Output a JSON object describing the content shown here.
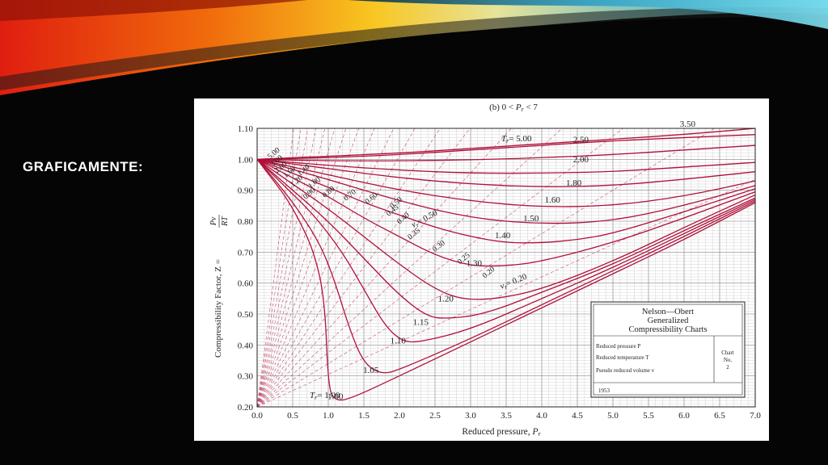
{
  "slide": {
    "number": "",
    "heading": "GRAFICAMENTE:"
  },
  "colors": {
    "background": "#050505",
    "curve": "#b0103a",
    "dashed": "#c64a6a",
    "grid": "#c8c8c8",
    "panel": "#ffffff"
  },
  "chart_data": {
    "type": "line",
    "title_prefix": "(b) 0 < ",
    "title_var": "P",
    "title_sub": "r",
    "title_suffix": " < 7",
    "xlabel": "Reduced pressure, ",
    "xlabel_var": "P",
    "xlabel_sub": "r",
    "ylabel": "Compressibility Factor, Z = ",
    "ylabel_frac_num": "Pv",
    "ylabel_frac_den": "RT",
    "xlim": [
      0,
      7
    ],
    "ylim": [
      0.2,
      1.1
    ],
    "grid": true,
    "x_ticks": [
      "0.0",
      "0.5",
      "1.0",
      "1.5",
      "2.0",
      "2.5",
      "3.0",
      "3.5",
      "4.0",
      "4.5",
      "5.0",
      "5.5",
      "6.0",
      "6.5",
      "7.0"
    ],
    "y_ticks": [
      "0.20",
      "0.30",
      "0.40",
      "0.50",
      "0.60",
      "0.70",
      "0.80",
      "0.90",
      "1.00",
      "1.10"
    ],
    "tr_label_prefix": "T",
    "tr_label_sub": "r",
    "vr_label_prefix": "v",
    "vr_label_sub": "r",
    "isotherms": [
      {
        "tr": "1.00",
        "label": "1.00",
        "points": [
          [
            0,
            1.0
          ],
          [
            0.2,
            0.94
          ],
          [
            0.4,
            0.88
          ],
          [
            0.6,
            0.8
          ],
          [
            0.8,
            0.7
          ],
          [
            0.95,
            0.55
          ],
          [
            1.0,
            0.26
          ],
          [
            1.1,
            0.22
          ],
          [
            1.3,
            0.225
          ],
          [
            2,
            0.3
          ],
          [
            3,
            0.41
          ],
          [
            4,
            0.52
          ],
          [
            5,
            0.63
          ],
          [
            6,
            0.74
          ],
          [
            7,
            0.86
          ]
        ]
      },
      {
        "tr": "1.05",
        "label": "1.05",
        "points": [
          [
            0,
            1.0
          ],
          [
            0.3,
            0.92
          ],
          [
            0.6,
            0.83
          ],
          [
            0.9,
            0.72
          ],
          [
            1.1,
            0.6
          ],
          [
            1.3,
            0.45
          ],
          [
            1.5,
            0.34
          ],
          [
            1.75,
            0.305
          ],
          [
            2,
            0.32
          ],
          [
            3,
            0.42
          ],
          [
            4,
            0.53
          ],
          [
            5,
            0.64
          ],
          [
            6,
            0.75
          ],
          [
            7,
            0.865
          ]
        ]
      },
      {
        "tr": "1.10",
        "label": "1.10",
        "points": [
          [
            0,
            1.0
          ],
          [
            0.4,
            0.91
          ],
          [
            0.8,
            0.82
          ],
          [
            1.2,
            0.7
          ],
          [
            1.5,
            0.58
          ],
          [
            1.8,
            0.46
          ],
          [
            2.05,
            0.41
          ],
          [
            2.3,
            0.41
          ],
          [
            3,
            0.45
          ],
          [
            4,
            0.55
          ],
          [
            5,
            0.65
          ],
          [
            6,
            0.76
          ],
          [
            7,
            0.87
          ]
        ]
      },
      {
        "tr": "1.15",
        "label": "1.15",
        "points": [
          [
            0,
            1.0
          ],
          [
            0.5,
            0.9
          ],
          [
            1,
            0.8
          ],
          [
            1.5,
            0.68
          ],
          [
            2,
            0.56
          ],
          [
            2.4,
            0.49
          ],
          [
            2.7,
            0.485
          ],
          [
            3.2,
            0.5
          ],
          [
            4,
            0.57
          ],
          [
            5,
            0.66
          ],
          [
            6,
            0.77
          ],
          [
            7,
            0.875
          ]
        ]
      },
      {
        "tr": "1.20",
        "label": "1.20",
        "points": [
          [
            0,
            1.0
          ],
          [
            0.5,
            0.92
          ],
          [
            1,
            0.84
          ],
          [
            1.5,
            0.75
          ],
          [
            2,
            0.66
          ],
          [
            2.5,
            0.58
          ],
          [
            2.9,
            0.545
          ],
          [
            3.4,
            0.55
          ],
          [
            4,
            0.58
          ],
          [
            5,
            0.67
          ],
          [
            6,
            0.78
          ],
          [
            7,
            0.885
          ]
        ]
      },
      {
        "tr": "1.30",
        "label": "1.30",
        "points": [
          [
            0,
            1.0
          ],
          [
            0.5,
            0.94
          ],
          [
            1,
            0.88
          ],
          [
            1.5,
            0.81
          ],
          [
            2,
            0.75
          ],
          [
            2.5,
            0.69
          ],
          [
            3,
            0.655
          ],
          [
            3.5,
            0.655
          ],
          [
            4,
            0.67
          ],
          [
            5,
            0.73
          ],
          [
            6,
            0.81
          ],
          [
            7,
            0.895
          ]
        ]
      },
      {
        "tr": "1.40",
        "label": "1.40",
        "points": [
          [
            0,
            1.0
          ],
          [
            0.5,
            0.955
          ],
          [
            1,
            0.91
          ],
          [
            1.5,
            0.86
          ],
          [
            2,
            0.82
          ],
          [
            2.5,
            0.78
          ],
          [
            3,
            0.75
          ],
          [
            3.5,
            0.73
          ],
          [
            4,
            0.73
          ],
          [
            4.5,
            0.74
          ],
          [
            5,
            0.76
          ],
          [
            6,
            0.83
          ],
          [
            7,
            0.905
          ]
        ]
      },
      {
        "tr": "1.50",
        "label": "1.50",
        "points": [
          [
            0,
            1.0
          ],
          [
            1,
            0.935
          ],
          [
            2,
            0.865
          ],
          [
            3,
            0.81
          ],
          [
            4,
            0.79
          ],
          [
            5,
            0.8
          ],
          [
            6,
            0.85
          ],
          [
            7,
            0.915
          ]
        ]
      },
      {
        "tr": "1.60",
        "label": "1.60",
        "points": [
          [
            0,
            1.0
          ],
          [
            1,
            0.95
          ],
          [
            2,
            0.9
          ],
          [
            3,
            0.865
          ],
          [
            4,
            0.845
          ],
          [
            5,
            0.85
          ],
          [
            6,
            0.88
          ],
          [
            7,
            0.93
          ]
        ]
      },
      {
        "tr": "1.80",
        "label": "1.80",
        "points": [
          [
            0,
            1.0
          ],
          [
            1,
            0.97
          ],
          [
            2,
            0.94
          ],
          [
            3,
            0.92
          ],
          [
            4,
            0.91
          ],
          [
            5,
            0.915
          ],
          [
            6,
            0.935
          ],
          [
            7,
            0.96
          ]
        ]
      },
      {
        "tr": "2.00",
        "label": "2.00",
        "points": [
          [
            0,
            1.0
          ],
          [
            1,
            0.98
          ],
          [
            2,
            0.965
          ],
          [
            3,
            0.955
          ],
          [
            4,
            0.955
          ],
          [
            5,
            0.96
          ],
          [
            6,
            0.975
          ],
          [
            7,
            0.99
          ]
        ]
      },
      {
        "tr": "2.50",
        "label": "2.50",
        "points": [
          [
            0,
            1.0
          ],
          [
            1,
            0.995
          ],
          [
            2,
            0.995
          ],
          [
            3,
            0.998
          ],
          [
            4,
            1.005
          ],
          [
            5,
            1.015
          ],
          [
            6,
            1.03
          ],
          [
            7,
            1.045
          ]
        ]
      },
      {
        "tr": "5.00",
        "label": "5.00",
        "points": [
          [
            0,
            1.0
          ],
          [
            1,
            1.005
          ],
          [
            2,
            1.015
          ],
          [
            3,
            1.03
          ],
          [
            4,
            1.045
          ],
          [
            5,
            1.06
          ],
          [
            6,
            1.07
          ],
          [
            7,
            1.08
          ]
        ]
      },
      {
        "tr": "3.50",
        "label": "3.50",
        "points": [
          [
            0,
            1.0
          ],
          [
            1,
            1.01
          ],
          [
            2,
            1.02
          ],
          [
            3,
            1.035
          ],
          [
            4,
            1.05
          ],
          [
            5,
            1.065
          ],
          [
            6,
            1.08
          ],
          [
            7,
            1.1
          ]
        ]
      }
    ],
    "tr_labels_on_curves": [
      {
        "text": "5.00",
        "x": 0.18,
        "y": 1.0
      },
      {
        "text": "3.00",
        "x": 0.22,
        "y": 0.975
      },
      {
        "text": "2.00",
        "x": 0.28,
        "y": 0.955
      },
      {
        "text": "1.60",
        "x": 0.4,
        "y": 0.94
      },
      {
        "text": "1.40",
        "x": 0.6,
        "y": 0.945
      },
      {
        "text": "1.20",
        "x": 0.5,
        "y": 0.91
      },
      {
        "text": "1.00",
        "x": 0.75,
        "y": 0.905
      },
      {
        "text": "0.90",
        "x": 0.68,
        "y": 0.87
      },
      {
        "text": "0.80",
        "x": 0.95,
        "y": 0.875
      },
      {
        "text": "0.70",
        "x": 1.25,
        "y": 0.865
      },
      {
        "text": "0.60",
        "x": 1.55,
        "y": 0.855
      },
      {
        "text": "0.50",
        "x": 1.9,
        "y": 0.84
      },
      {
        "text": "0.45",
        "x": 1.85,
        "y": 0.815
      },
      {
        "text": "0.40",
        "x": 2.0,
        "y": 0.79
      },
      {
        "text": "0.35",
        "x": 2.15,
        "y": 0.74
      },
      {
        "text": "0.30",
        "x": 2.5,
        "y": 0.7
      },
      {
        "text": "0.25",
        "x": 2.85,
        "y": 0.66
      },
      {
        "text": "0.20",
        "x": 3.2,
        "y": 0.615
      }
    ],
    "isotherm_labels": [
      {
        "text": "3.50",
        "x": 6.05,
        "y": 1.105
      },
      {
        "text": "2.50",
        "x": 4.55,
        "y": 1.055
      },
      {
        "text": "2.00",
        "x": 4.55,
        "y": 0.99
      },
      {
        "text": "1.80",
        "x": 4.45,
        "y": 0.915
      },
      {
        "text": "1.60",
        "x": 4.15,
        "y": 0.86
      },
      {
        "text": "1.50",
        "x": 3.85,
        "y": 0.8
      },
      {
        "text": "1.40",
        "x": 3.45,
        "y": 0.745
      },
      {
        "text": "1.30",
        "x": 3.05,
        "y": 0.655
      },
      {
        "text": "1.20",
        "x": 2.65,
        "y": 0.54
      },
      {
        "text": "1.15",
        "x": 2.3,
        "y": 0.465
      },
      {
        "text": "1.10",
        "x": 1.98,
        "y": 0.405
      },
      {
        "text": "1.05",
        "x": 1.6,
        "y": 0.31
      },
      {
        "text": "1.00",
        "x": 1.1,
        "y": 0.225
      }
    ],
    "tr_500_label": "= 5.00",
    "tr_100_label": "= 1.00",
    "vr_050_label": "= 0.50",
    "vr_020_label": "= 0.20",
    "legend_box": {
      "title_lines": [
        "Nelson—Obert",
        "Generalized",
        "Compressibility Charts"
      ],
      "rows": [
        "Reduced pressure P",
        "Reduced temperature T",
        "Pseudo reduced volume v"
      ],
      "chart_label": [
        "Chart",
        "No.",
        "2"
      ],
      "year": "1953"
    }
  }
}
